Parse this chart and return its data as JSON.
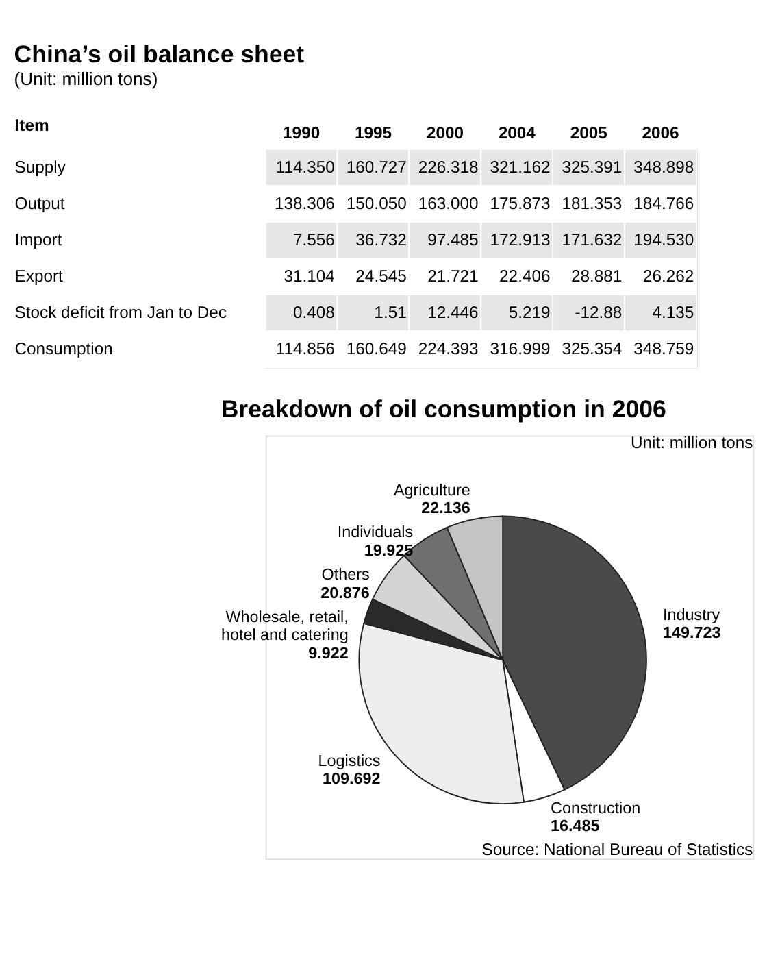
{
  "chart_data": [
    {
      "type": "heatmap",
      "title": "China’s oil balance sheet",
      "subtitle": "(Unit: million tons)",
      "ylabel": "Item",
      "categories": [
        "1990",
        "1995",
        "2000",
        "2004",
        "2005",
        "2006"
      ],
      "y_categories": [
        "Supply",
        "Output",
        "Import",
        "Export",
        "Stock deficit from Jan to Dec",
        "Consumption"
      ],
      "cells": [
        [
          114.35,
          160.727,
          226.318,
          321.162,
          325.391,
          348.898
        ],
        [
          138.306,
          150.05,
          163.0,
          175.873,
          181.353,
          184.766
        ],
        [
          7.556,
          36.732,
          97.485,
          172.913,
          171.632,
          194.53
        ],
        [
          31.104,
          24.545,
          21.721,
          22.406,
          28.881,
          26.262
        ],
        [
          0.408,
          1.51,
          12.446,
          5.219,
          -12.88,
          4.135
        ],
        [
          114.856,
          160.649,
          224.393,
          316.999,
          325.354,
          348.759
        ]
      ],
      "cell_labels": [
        [
          "114.350",
          "160.727",
          "226.318",
          "321.162",
          "325.391",
          "348.898"
        ],
        [
          "138.306",
          "150.050",
          "163.000",
          "175.873",
          "181.353",
          "184.766"
        ],
        [
          "7.556",
          "36.732",
          "97.485",
          "172.913",
          "171.632",
          "194.530"
        ],
        [
          "31.104",
          "24.545",
          "21.721",
          "22.406",
          "28.881",
          "26.262"
        ],
        [
          "0.408",
          "1.51",
          "12.446",
          "5.219",
          "-12.88",
          "4.135"
        ],
        [
          "114.856",
          "160.649",
          "224.393",
          "316.999",
          "325.354",
          "348.759"
        ]
      ]
    },
    {
      "type": "pie",
      "title": "Breakdown of oil consumption in 2006",
      "categories": [
        "Industry",
        "Construction",
        "Logistics",
        "Wholesale, retail, hotel and catering",
        "Others",
        "Individuals",
        "Agriculture"
      ],
      "values": [
        149.723,
        16.485,
        109.692,
        9.922,
        20.876,
        19.925,
        22.136
      ],
      "colors": [
        "#4a4a4a",
        "#ffffff",
        "#eeeeee",
        "#2a2a2a",
        "#d4d4d4",
        "#707070",
        "#c4c4c4"
      ],
      "data_labels": true,
      "annotations": [
        "Unit: million tons",
        "Source: National Bureau of Statistics"
      ]
    }
  ]
}
